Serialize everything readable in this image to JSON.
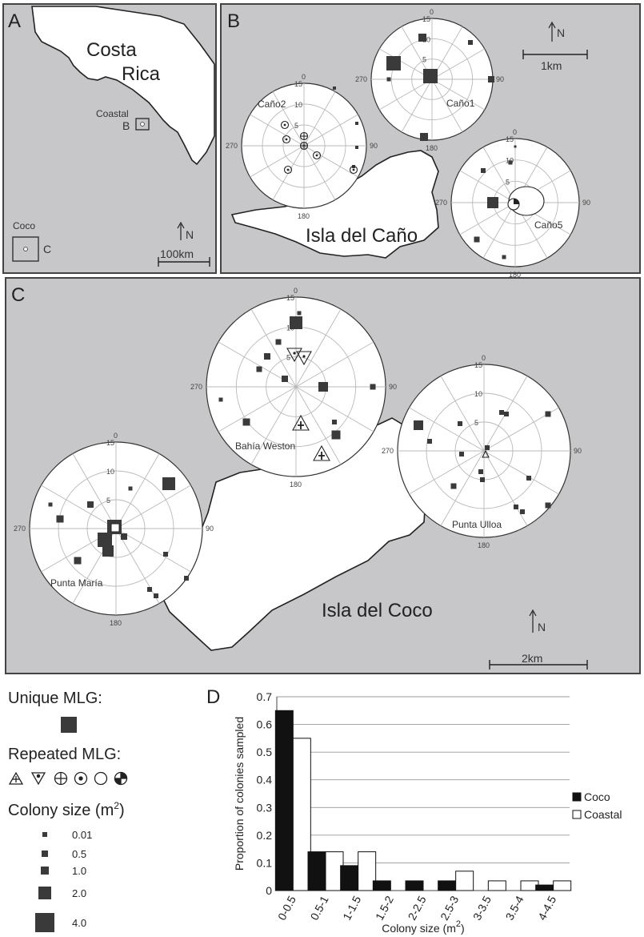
{
  "panels": {
    "A": {
      "letter": "A",
      "country_line1": "Costa",
      "country_line2": "Rica",
      "coastal_label": "Coastal",
      "coastal_box_label": "B",
      "coco_label": "Coco",
      "coco_box_label": "C",
      "north": "N",
      "scale": "100km"
    },
    "B": {
      "letter": "B",
      "island": "Isla del Caño",
      "north": "N",
      "scale": "1km"
    },
    "C": {
      "letter": "C",
      "island": "Isla del Coco",
      "north": "N",
      "scale": "2km"
    },
    "D": {
      "letter": "D"
    }
  },
  "polar": {
    "radial_ticks": [
      "5",
      "10",
      "15"
    ],
    "bearings": [
      "0",
      "90",
      "180",
      "270"
    ],
    "sites": [
      {
        "name": "Caño2",
        "show_name": true
      },
      {
        "name": "Caño1",
        "show_name": true
      },
      {
        "name": "Caño5",
        "show_name": true
      },
      {
        "name": "Bahía Weston",
        "show_name": true
      },
      {
        "name": "Punta Ulloa",
        "show_name": true
      },
      {
        "name": "Punta María",
        "show_name": true
      }
    ]
  },
  "legend": {
    "unique_title": "Unique MLG:",
    "repeated_title": "Repeated MLG:",
    "size_title": "Colony size (m",
    "size_sup": "2",
    "size_close": ")",
    "sizes": [
      "0.01",
      "0.5",
      "1.0",
      "2.0",
      "4.0"
    ]
  },
  "chart_data": {
    "type": "bar",
    "categories": [
      "0-0.5",
      "0.5-1",
      "1-1.5",
      "1.5-2",
      "2-2.5",
      "2.5-3",
      "3-3.5",
      "3.5-4",
      "4-4.5"
    ],
    "series": [
      {
        "name": "Coco",
        "values": [
          0.65,
          0.14,
          0.09,
          0.035,
          0.035,
          0.035,
          0,
          0,
          0.02
        ],
        "color": "#111111"
      },
      {
        "name": "Coastal",
        "values": [
          0.55,
          0.14,
          0.14,
          0,
          0,
          0.07,
          0.035,
          0.035,
          0.035
        ],
        "color": "#ffffff"
      }
    ],
    "yticks": [
      "0",
      "0.1",
      "0.2",
      "0.3",
      "0.4",
      "0.5",
      "0.6",
      "0.7"
    ],
    "ylim": [
      0,
      0.7
    ],
    "xlabel": "Colony size (m",
    "xlabel_sup": "2",
    "xlabel_close": ")",
    "ylabel": "Proportion of colonies sampled",
    "legend_position": "right",
    "grid": true
  }
}
